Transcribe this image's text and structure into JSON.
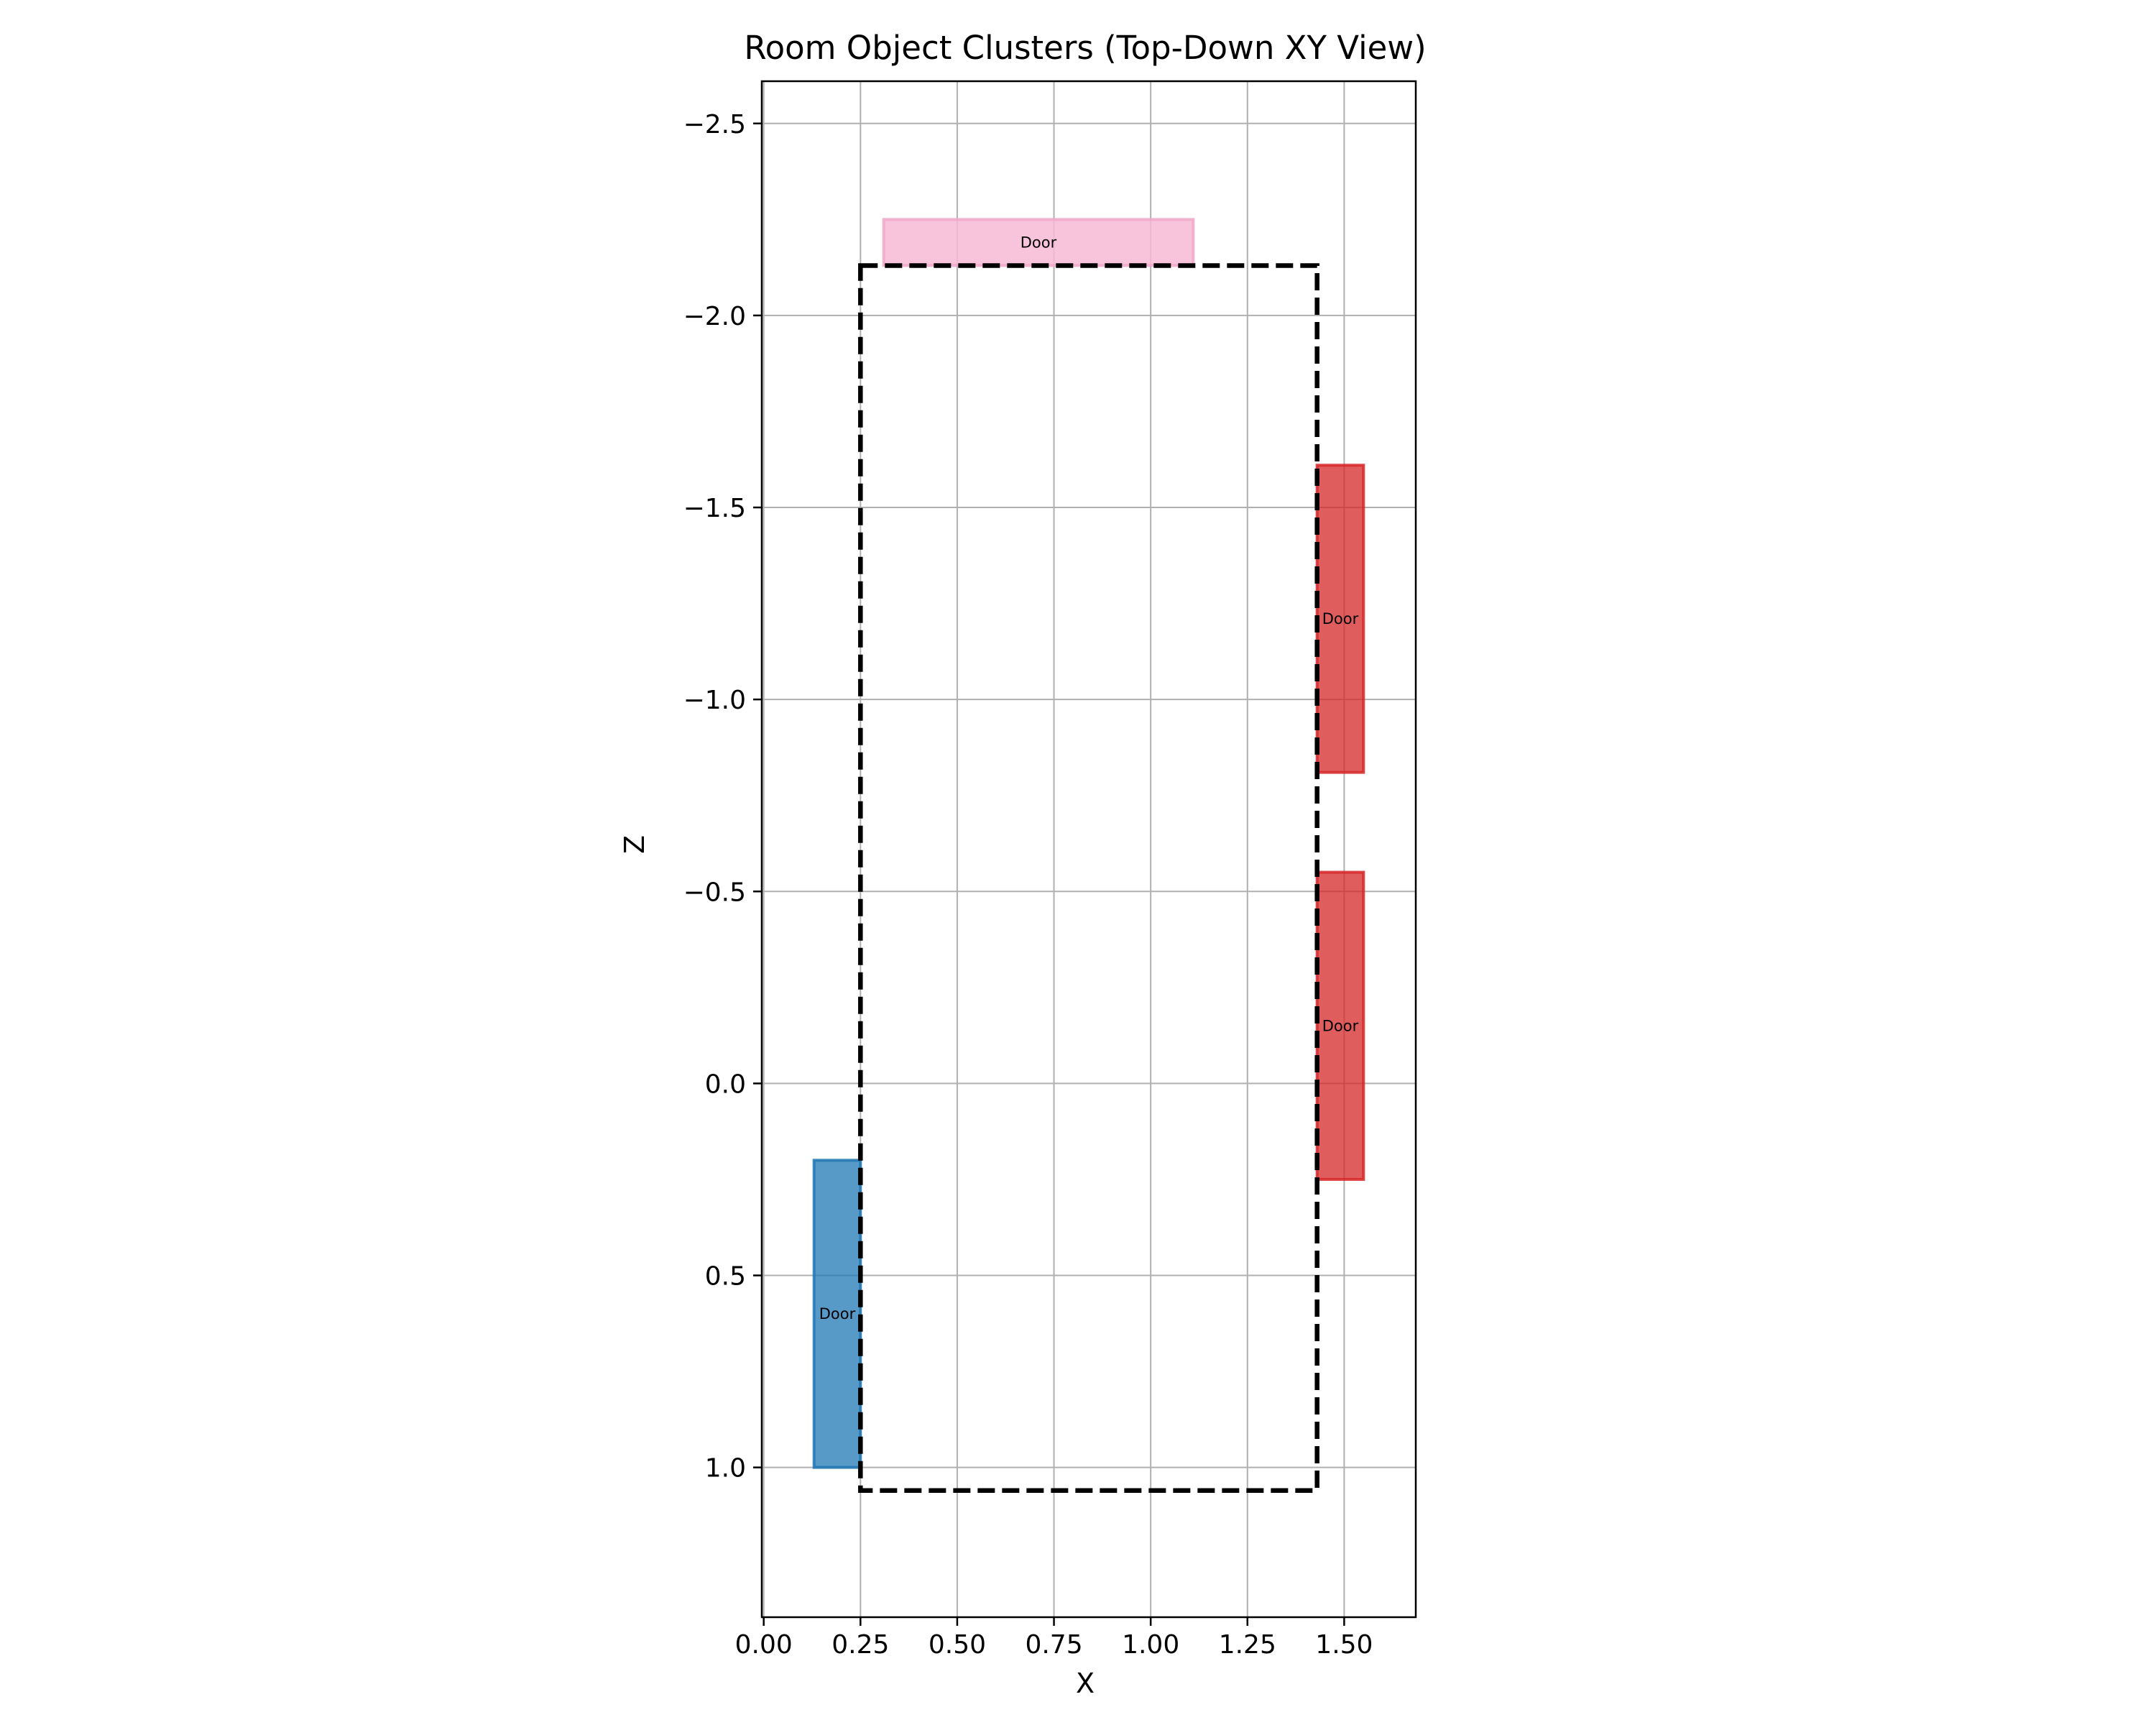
{
  "chart_data": {
    "type": "rectangles",
    "title": "Room Object Clusters (Top-Down XY View)",
    "xlabel": "X",
    "ylabel": "Z",
    "xlim": [
      -0.005,
      1.685
    ],
    "ylim": [
      1.39,
      -2.61
    ],
    "y_inverted": true,
    "grid": true,
    "xticks": [
      0.0,
      0.25,
      0.5,
      0.75,
      1.0,
      1.25,
      1.5
    ],
    "xtick_labels": [
      "0.00",
      "0.25",
      "0.50",
      "0.75",
      "1.00",
      "1.25",
      "1.50"
    ],
    "yticks": [
      -2.5,
      -2.0,
      -1.5,
      -1.0,
      -0.5,
      0.0,
      0.5,
      1.0
    ],
    "ytick_labels": [
      "−2.5",
      "−2.0",
      "−1.5",
      "−1.0",
      "−0.5",
      "0.0",
      "0.5",
      "1.0"
    ],
    "room_boundary": {
      "x_min": 0.25,
      "x_max": 1.43,
      "z_min": -2.13,
      "z_max": 1.06,
      "style": "dashed",
      "color": "#000000"
    },
    "objects": [
      {
        "label": "Door",
        "x_min": 0.31,
        "x_max": 1.11,
        "z_min": -2.25,
        "z_max": -2.13,
        "color": "#f7bad6",
        "edge": "#f0a8c8",
        "alpha": 0.85
      },
      {
        "label": "Door",
        "x_min": 1.43,
        "x_max": 1.55,
        "z_min": -1.61,
        "z_max": -0.81,
        "color": "#d62728",
        "edge": "#d62728",
        "alpha": 0.75
      },
      {
        "label": "Door",
        "x_min": 1.43,
        "x_max": 1.55,
        "z_min": -0.55,
        "z_max": 0.25,
        "color": "#d62728",
        "edge": "#d62728",
        "alpha": 0.75
      },
      {
        "label": "Door",
        "x_min": 0.13,
        "x_max": 0.25,
        "z_min": 0.2,
        "z_max": 1.0,
        "color": "#1f77b4",
        "edge": "#1f77b4",
        "alpha": 0.75
      }
    ]
  }
}
